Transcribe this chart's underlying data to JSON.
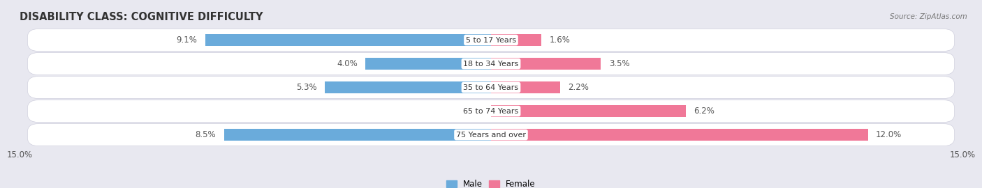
{
  "title": "DISABILITY CLASS: COGNITIVE DIFFICULTY",
  "source": "Source: ZipAtlas.com",
  "categories": [
    "5 to 17 Years",
    "18 to 34 Years",
    "35 to 64 Years",
    "65 to 74 Years",
    "75 Years and over"
  ],
  "male_values": [
    9.1,
    4.0,
    5.3,
    0.0,
    8.5
  ],
  "female_values": [
    1.6,
    3.5,
    2.2,
    6.2,
    12.0
  ],
  "max_val": 15.0,
  "male_color": "#6aabdb",
  "male_color_light": "#b8d8ee",
  "female_color": "#f07898",
  "female_color_light": "#f8b8c8",
  "bar_height": 0.52,
  "bg_color": "#e8e8f0",
  "row_colors": [
    "#f5f5fa",
    "#eaeaf2"
  ],
  "title_fontsize": 10.5,
  "label_fontsize": 8.5,
  "cat_fontsize": 8.0,
  "tick_fontsize": 8.5,
  "title_color": "#333333",
  "source_color": "#777777",
  "val_label_color_dark": "#555555",
  "val_label_color_white": "#ffffff"
}
